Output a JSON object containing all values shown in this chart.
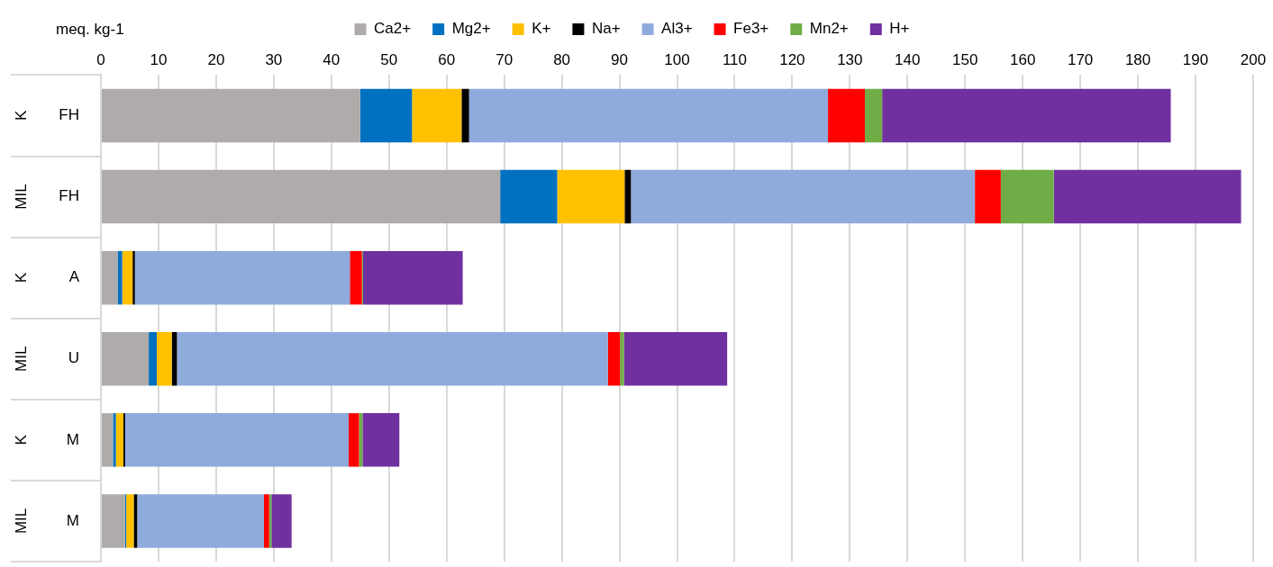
{
  "chart_data": {
    "type": "bar",
    "orientation": "horizontal",
    "stacked": true,
    "xlabel": "meq. kg-1",
    "categories": [
      "FH",
      "FH",
      "A",
      "U",
      "M",
      "M"
    ],
    "annotations": [
      "K",
      "MIL",
      "K",
      "MIL",
      "K",
      "MIL"
    ],
    "series": [
      {
        "name": "Ca2+",
        "color": "#afabab",
        "values": [
          45.0,
          69.3,
          2.9,
          8.3,
          2.1,
          4.2
        ]
      },
      {
        "name": "Mg2+",
        "color": "#0070c0",
        "values": [
          9.0,
          9.9,
          0.8,
          1.4,
          0.5,
          0.2
        ]
      },
      {
        "name": "K+",
        "color": "#ffc000",
        "values": [
          8.6,
          11.7,
          1.8,
          2.6,
          1.3,
          1.3
        ]
      },
      {
        "name": "Na+",
        "color": "#000000",
        "values": [
          1.3,
          1.1,
          0.4,
          0.9,
          0.3,
          0.6
        ]
      },
      {
        "name": "Al3+",
        "color": "#8faadc",
        "values": [
          62.3,
          59.7,
          37.3,
          74.8,
          38.8,
          22.0
        ]
      },
      {
        "name": "Fe3+",
        "color": "#ff0000",
        "values": [
          6.4,
          4.5,
          2.1,
          2.1,
          1.8,
          0.9
        ]
      },
      {
        "name": "Mn2+",
        "color": "#70ad47",
        "values": [
          3.0,
          9.2,
          0.2,
          0.7,
          0.6,
          0.4
        ]
      },
      {
        "name": "H+",
        "color": "#7030a0",
        "values": [
          50.1,
          32.5,
          17.3,
          17.9,
          6.4,
          3.5
        ]
      }
    ],
    "xlim": [
      0,
      200
    ],
    "xticks": [
      0,
      10,
      20,
      30,
      40,
      50,
      60,
      70,
      80,
      90,
      100,
      110,
      120,
      130,
      140,
      150,
      160,
      170,
      180,
      190,
      200
    ],
    "grid": "x",
    "legend": "top"
  }
}
